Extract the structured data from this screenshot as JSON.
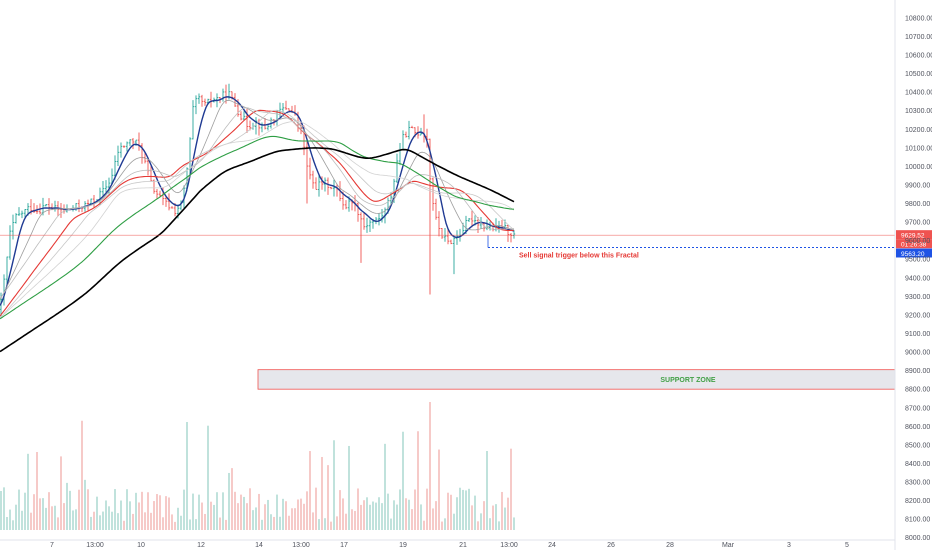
{
  "chart_data": {
    "type": "candlestick",
    "y_axis": {
      "ticks": [
        "10800.00",
        "10700.00",
        "10600.00",
        "10500.00",
        "10400.00",
        "10300.00",
        "10200.00",
        "10100.00",
        "10000.00",
        "9900.00",
        "9800.00",
        "9700.00",
        "9600.00",
        "9500.00",
        "9400.00",
        "9300.00",
        "9200.00",
        "9100.00",
        "9000.00",
        "8900.00",
        "8800.00",
        "8700.00",
        "8600.00",
        "8500.00",
        "8400.00",
        "8300.00",
        "8200.00",
        "8100.00",
        "8000.00"
      ],
      "range": [
        7950,
        10880
      ]
    },
    "x_axis": {
      "ticks": [
        "7",
        "13:00",
        "10",
        "12",
        "14",
        "13:00",
        "17",
        "19",
        "21",
        "13:00",
        "24",
        "26",
        "28",
        "Mar",
        "3",
        "5"
      ]
    },
    "price_tags": {
      "last_price": "9629.52",
      "countdown": "01:26:38",
      "level": "9563.20",
      "last_price_color": "#ef5350",
      "level_color": "#1e53e5"
    },
    "annotations": {
      "sell_signal": "Sell signal trigger below this Fractal",
      "support_zone": "SUPPORT ZONE",
      "support_zone_range": [
        8800,
        8905
      ],
      "fractal_level": 9563.2,
      "last_price_level": 9629.52
    },
    "price_path": [
      [
        0,
        9230
      ],
      [
        5,
        9420
      ],
      [
        10,
        9640
      ],
      [
        15,
        9720
      ],
      [
        22,
        9750
      ],
      [
        30,
        9780
      ],
      [
        38,
        9760
      ],
      [
        45,
        9790
      ],
      [
        55,
        9770
      ],
      [
        65,
        9760
      ],
      [
        75,
        9780
      ],
      [
        85,
        9790
      ],
      [
        95,
        9820
      ],
      [
        105,
        9880
      ],
      [
        112,
        9950
      ],
      [
        118,
        10080
      ],
      [
        125,
        10120
      ],
      [
        132,
        10140
      ],
      [
        138,
        10120
      ],
      [
        145,
        10020
      ],
      [
        152,
        9890
      ],
      [
        160,
        9830
      ],
      [
        168,
        9790
      ],
      [
        175,
        9760
      ],
      [
        182,
        9800
      ],
      [
        188,
        10020
      ],
      [
        193,
        10310
      ],
      [
        198,
        10370
      ],
      [
        205,
        10330
      ],
      [
        212,
        10360
      ],
      [
        220,
        10370
      ],
      [
        228,
        10400
      ],
      [
        233,
        10350
      ],
      [
        240,
        10280
      ],
      [
        248,
        10220
      ],
      [
        256,
        10240
      ],
      [
        264,
        10200
      ],
      [
        272,
        10250
      ],
      [
        280,
        10300
      ],
      [
        288,
        10320
      ],
      [
        295,
        10270
      ],
      [
        302,
        10180
      ],
      [
        308,
        9960
      ],
      [
        315,
        9890
      ],
      [
        322,
        9910
      ],
      [
        330,
        9900
      ],
      [
        338,
        9860
      ],
      [
        345,
        9780
      ],
      [
        352,
        9820
      ],
      [
        358,
        9760
      ],
      [
        364,
        9680
      ],
      [
        370,
        9700
      ],
      [
        378,
        9710
      ],
      [
        385,
        9760
      ],
      [
        392,
        9860
      ],
      [
        398,
        10060
      ],
      [
        404,
        10170
      ],
      [
        410,
        10200
      ],
      [
        416,
        10180
      ],
      [
        422,
        10190
      ],
      [
        427,
        10150
      ],
      [
        431,
        9870
      ],
      [
        436,
        9710
      ],
      [
        442,
        9630
      ],
      [
        448,
        9590
      ],
      [
        454,
        9610
      ],
      [
        460,
        9640
      ],
      [
        466,
        9690
      ],
      [
        472,
        9720
      ],
      [
        478,
        9700
      ],
      [
        484,
        9680
      ],
      [
        490,
        9670
      ],
      [
        496,
        9660
      ],
      [
        502,
        9680
      ],
      [
        508,
        9650
      ],
      [
        514,
        9630
      ]
    ],
    "moving_averages": [
      {
        "color": "#1f3a93",
        "width": 1.4,
        "lag": 3,
        "smooth": 2
      },
      {
        "color": "#e53935",
        "width": 1.1,
        "lag": 12,
        "smooth": 10
      },
      {
        "color": "#9e9e9e",
        "width": 0.8,
        "lag": 6,
        "smooth": 5
      },
      {
        "color": "#bdbdbd",
        "width": 0.8,
        "lag": 10,
        "smooth": 8
      },
      {
        "color": "#c7c7c7",
        "width": 0.8,
        "lag": 16,
        "smooth": 12
      },
      {
        "color": "#d2d2d2",
        "width": 0.8,
        "lag": 22,
        "smooth": 16
      },
      {
        "color": "#2e9e44",
        "width": 1.1,
        "lag": 30,
        "smooth": 22
      },
      {
        "color": "#000000",
        "width": 1.6,
        "lag": 48,
        "smooth": 30
      }
    ],
    "volume_scale_max": 1
  }
}
